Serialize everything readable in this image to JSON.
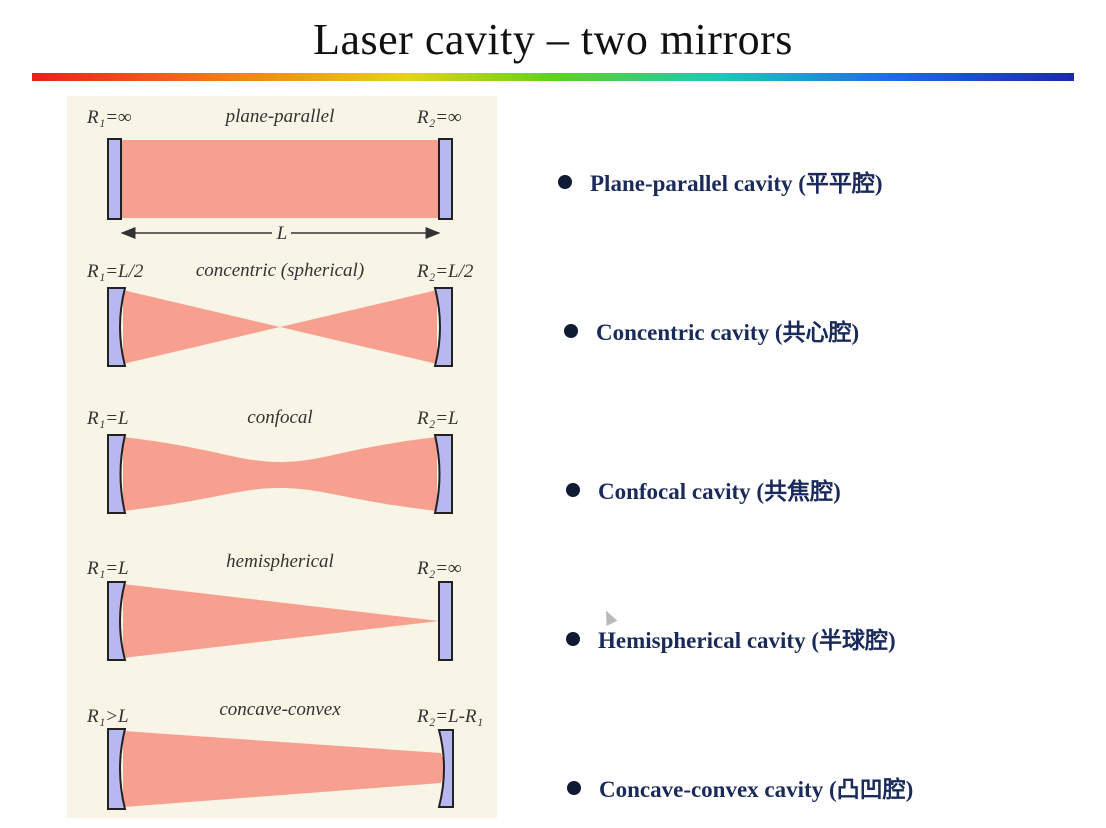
{
  "title": "Laser cavity – two mirrors",
  "diagrams": [
    {
      "name": "plane-parallel",
      "r1": "R₁=∞",
      "r2": "R₂=∞",
      "length_label": "L"
    },
    {
      "name": "concentric (spherical)",
      "r1": "R₁=L/2",
      "r2": "R₂=L/2"
    },
    {
      "name": "confocal",
      "r1": "R₁=L",
      "r2": "R₂=L"
    },
    {
      "name": "hemispherical",
      "r1": "R₁=L",
      "r2": "R₂=∞"
    },
    {
      "name": "concave-convex",
      "r1": "R₁>L",
      "r2": "R₂=L-R₁"
    }
  ],
  "bullets": [
    "Plane-parallel cavity (平平腔)",
    "Concentric cavity (共心腔)",
    "Confocal cavity (共焦腔)",
    "Hemispherical cavity (半球腔)",
    "Concave-convex cavity (凸凹腔)"
  ],
  "colors": {
    "beam": "#f8a090",
    "mirror": "#b8b8f0",
    "mirror_edge": "#222222",
    "panel": "#f8f4e6",
    "bullet_text": "#1a2a5a"
  }
}
